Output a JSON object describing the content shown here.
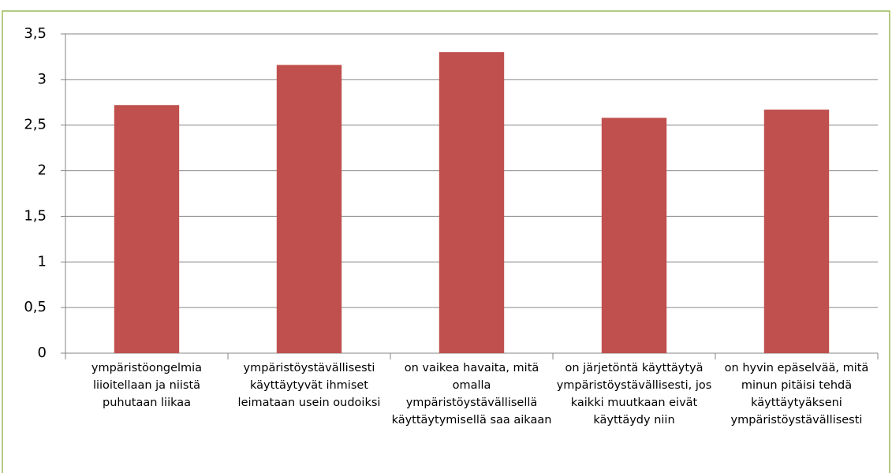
{
  "chart_data": {
    "type": "bar",
    "categories": [
      "ympäristöongelmia liioitellaan ja niistä puhutaan liikaa",
      "ympäristöystävällisesti käyttäytyvät ihmiset leimataan usein oudoiksi",
      "on vaikea havaita, mitä omalla ympäristöystävällisellä käyttäytymisellä saa aikaan",
      "on järjetöntä käyttäytyä ympäristöystävällisesti, jos kaikki muutkaan eivät käyttäydy niin",
      "on hyvin epäselvää, mitä minun pitäisi tehdä käyttäytyäkseni ympäristöystävällisesti"
    ],
    "values": [
      2.72,
      3.16,
      3.3,
      2.58,
      2.67
    ],
    "color": "#c0504d",
    "ylim": [
      0,
      3.5
    ],
    "yticks": [
      0,
      {
        "value": 0.5,
        "label": "0,5"
      },
      1,
      {
        "value": 1.5,
        "label": "1,5"
      },
      2,
      {
        "value": 2.5,
        "label": "2,5"
      },
      3,
      {
        "value": 3.5,
        "label": "3,5"
      }
    ],
    "grid": true
  }
}
